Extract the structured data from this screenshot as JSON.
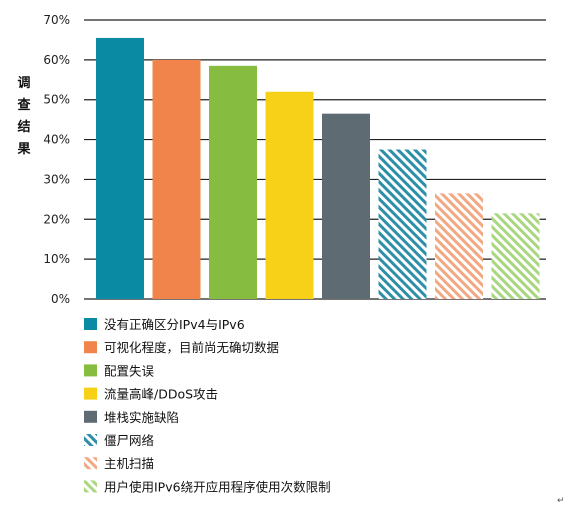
{
  "chart_data": {
    "type": "bar",
    "title": "",
    "ylabel": "调查结果",
    "xlabel": "",
    "ylim": [
      0,
      70
    ],
    "yticks": [
      "0%",
      "10%",
      "20%",
      "30%",
      "40%",
      "50%",
      "60%",
      "70%"
    ],
    "grid": true,
    "legend_position": "bottom",
    "categories": [
      "没有正确区分IPv4与IPv6",
      "可视化程度，目前尚无确切数据",
      "配置失误",
      "流量高峰/DDoS攻击",
      "堆栈实施缺陷",
      "僵尸网络",
      "主机扫描",
      "用户使用IPv6绕开应用程序使用次数限制"
    ],
    "values": [
      65.5,
      60,
      58.5,
      52,
      46.5,
      37.5,
      26.5,
      21.5
    ],
    "colors": [
      "#0b8aa3",
      "#f0844a",
      "#86bc3f",
      "#f7d117",
      "#5f6b73",
      "#2e8fa8",
      "#f2a883",
      "#a9d77f"
    ],
    "hatched": [
      false,
      false,
      false,
      false,
      false,
      true,
      true,
      true
    ]
  },
  "corner_mark": "↵"
}
